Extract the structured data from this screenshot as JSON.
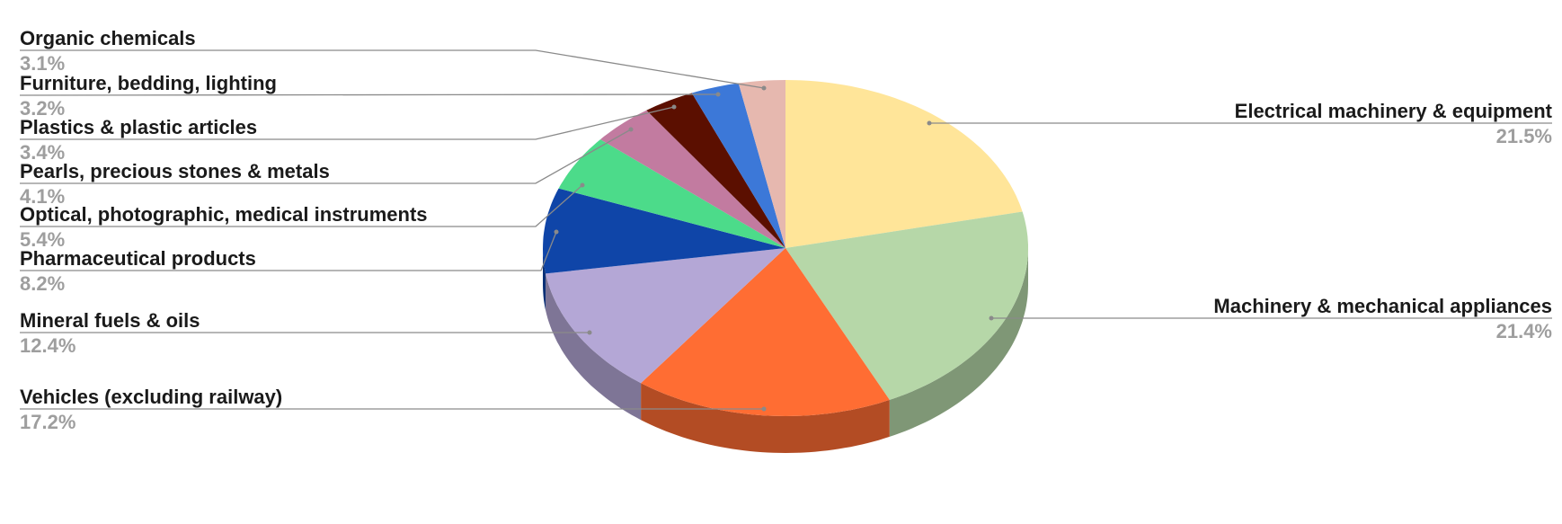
{
  "chart_data": {
    "type": "pie",
    "style": "3d",
    "start": "top, clockwise",
    "legend": "none (outside labels with leader lines)",
    "slices": [
      {
        "label": "Electrical machinery & equipment",
        "value": 21.5,
        "display": "21.5%",
        "color": "#ffe599",
        "side": "right"
      },
      {
        "label": "Machinery & mechanical appliances",
        "value": 21.4,
        "display": "21.4%",
        "color": "#b6d7a8",
        "side": "right"
      },
      {
        "label": "Vehicles (excluding railway)",
        "value": 17.2,
        "display": "17.2%",
        "color": "#ff6d33",
        "side": "left"
      },
      {
        "label": "Mineral fuels & oils",
        "value": 12.4,
        "display": "12.4%",
        "color": "#b4a7d6",
        "side": "left"
      },
      {
        "label": "Pharmaceutical products",
        "value": 8.2,
        "display": "8.2%",
        "color": "#0f45a8",
        "side": "left"
      },
      {
        "label": "Optical, photographic, medical instruments",
        "value": 5.4,
        "display": "5.4%",
        "color": "#4cdb8a",
        "side": "left"
      },
      {
        "label": "Pearls, precious stones & metals",
        "value": 4.1,
        "display": "4.1%",
        "color": "#c27ba0",
        "side": "left"
      },
      {
        "label": "Plastics & plastic articles",
        "value": 3.4,
        "display": "3.4%",
        "color": "#5b0f00",
        "side": "left"
      },
      {
        "label": "Furniture, bedding, lighting",
        "value": 3.2,
        "display": "3.2%",
        "color": "#3c78d8",
        "side": "left"
      },
      {
        "label": "Organic chemicals",
        "value": 3.1,
        "display": "3.1%",
        "color": "#e6b8af",
        "side": "left"
      }
    ]
  }
}
